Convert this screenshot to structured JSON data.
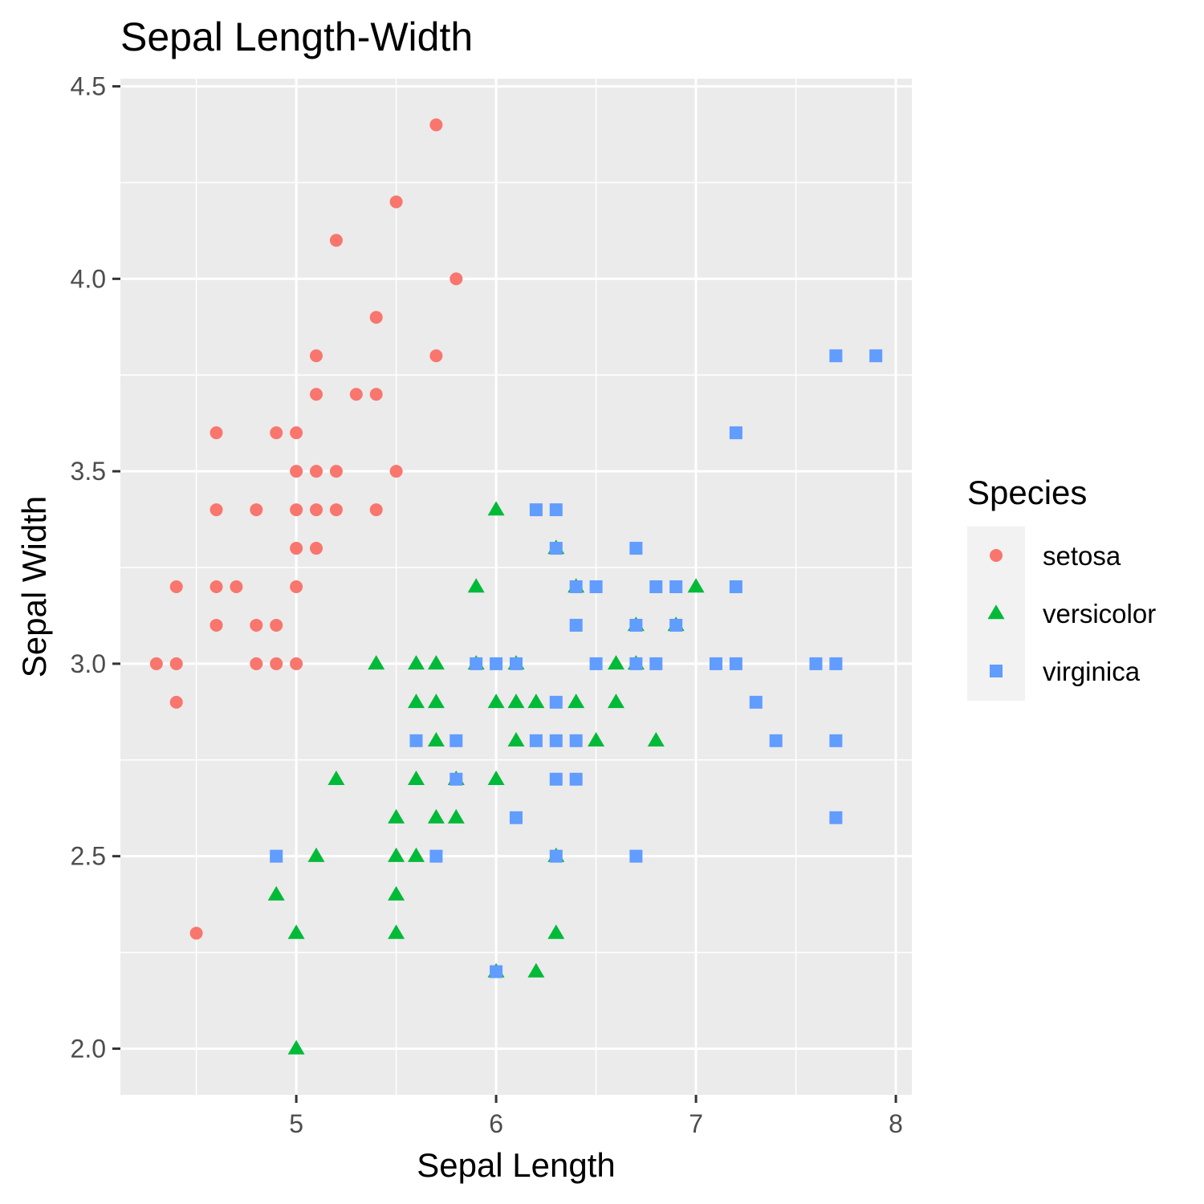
{
  "chart_data": {
    "type": "scatter",
    "title": "Sepal Length-Width",
    "xlabel": "Sepal Length",
    "ylabel": "Sepal Width",
    "xlim": [
      4.12,
      8.08
    ],
    "ylim": [
      1.88,
      4.52
    ],
    "x_ticks": [
      "5",
      "6",
      "7",
      "8"
    ],
    "y_ticks": [
      "2.0",
      "2.5",
      "3.0",
      "3.5",
      "4.0",
      "4.5"
    ],
    "grid": true,
    "legend": {
      "title": "Species",
      "position": "right"
    },
    "series": [
      {
        "name": "setosa",
        "shape": "circle",
        "color": "#F8766D",
        "points": [
          [
            4.3,
            3.0
          ],
          [
            4.4,
            3.2
          ],
          [
            4.4,
            3.0
          ],
          [
            4.4,
            2.9
          ],
          [
            4.5,
            2.3
          ],
          [
            4.6,
            3.6
          ],
          [
            4.6,
            3.4
          ],
          [
            4.6,
            3.2
          ],
          [
            4.6,
            3.1
          ],
          [
            4.7,
            3.2
          ],
          [
            4.8,
            3.4
          ],
          [
            4.8,
            3.1
          ],
          [
            4.8,
            3.0
          ],
          [
            4.9,
            3.6
          ],
          [
            4.9,
            3.1
          ],
          [
            4.9,
            3.0
          ],
          [
            5.0,
            3.6
          ],
          [
            5.0,
            3.5
          ],
          [
            5.0,
            3.4
          ],
          [
            5.0,
            3.3
          ],
          [
            5.0,
            3.2
          ],
          [
            5.0,
            3.0
          ],
          [
            5.1,
            3.8
          ],
          [
            5.1,
            3.7
          ],
          [
            5.1,
            3.5
          ],
          [
            5.1,
            3.4
          ],
          [
            5.1,
            3.3
          ],
          [
            5.2,
            4.1
          ],
          [
            5.2,
            3.5
          ],
          [
            5.2,
            3.4
          ],
          [
            5.3,
            3.7
          ],
          [
            5.4,
            3.9
          ],
          [
            5.4,
            3.7
          ],
          [
            5.4,
            3.4
          ],
          [
            5.5,
            4.2
          ],
          [
            5.5,
            3.5
          ],
          [
            5.7,
            4.4
          ],
          [
            5.7,
            3.8
          ],
          [
            5.8,
            4.0
          ]
        ]
      },
      {
        "name": "versicolor",
        "shape": "triangle",
        "color": "#00BA38",
        "points": [
          [
            4.9,
            2.4
          ],
          [
            5.0,
            2.3
          ],
          [
            5.0,
            2.0
          ],
          [
            5.1,
            2.5
          ],
          [
            5.2,
            2.7
          ],
          [
            5.4,
            3.0
          ],
          [
            5.5,
            2.6
          ],
          [
            5.5,
            2.5
          ],
          [
            5.5,
            2.4
          ],
          [
            5.5,
            2.3
          ],
          [
            5.6,
            3.0
          ],
          [
            5.6,
            2.9
          ],
          [
            5.6,
            2.7
          ],
          [
            5.6,
            2.5
          ],
          [
            5.7,
            3.0
          ],
          [
            5.7,
            2.9
          ],
          [
            5.7,
            2.8
          ],
          [
            5.7,
            2.6
          ],
          [
            5.8,
            2.7
          ],
          [
            5.8,
            2.6
          ],
          [
            5.9,
            3.2
          ],
          [
            5.9,
            3.0
          ],
          [
            6.0,
            3.4
          ],
          [
            6.0,
            2.9
          ],
          [
            6.0,
            2.7
          ],
          [
            6.0,
            2.2
          ],
          [
            6.1,
            3.0
          ],
          [
            6.1,
            2.9
          ],
          [
            6.1,
            2.8
          ],
          [
            6.2,
            2.9
          ],
          [
            6.2,
            2.2
          ],
          [
            6.3,
            3.3
          ],
          [
            6.3,
            2.5
          ],
          [
            6.3,
            2.3
          ],
          [
            6.4,
            3.2
          ],
          [
            6.4,
            2.9
          ],
          [
            6.5,
            2.8
          ],
          [
            6.6,
            3.0
          ],
          [
            6.6,
            2.9
          ],
          [
            6.7,
            3.1
          ],
          [
            6.7,
            3.0
          ],
          [
            6.8,
            2.8
          ],
          [
            6.9,
            3.1
          ],
          [
            7.0,
            3.2
          ]
        ]
      },
      {
        "name": "virginica",
        "shape": "square",
        "color": "#619CFF",
        "points": [
          [
            4.9,
            2.5
          ],
          [
            5.6,
            2.8
          ],
          [
            5.7,
            2.5
          ],
          [
            5.8,
            2.8
          ],
          [
            5.8,
            2.7
          ],
          [
            5.9,
            3.0
          ],
          [
            6.0,
            3.0
          ],
          [
            6.0,
            2.2
          ],
          [
            6.1,
            3.0
          ],
          [
            6.1,
            2.6
          ],
          [
            6.2,
            3.4
          ],
          [
            6.2,
            2.8
          ],
          [
            6.3,
            3.4
          ],
          [
            6.3,
            3.3
          ],
          [
            6.3,
            2.9
          ],
          [
            6.3,
            2.8
          ],
          [
            6.3,
            2.7
          ],
          [
            6.3,
            2.5
          ],
          [
            6.4,
            3.2
          ],
          [
            6.4,
            3.1
          ],
          [
            6.4,
            2.8
          ],
          [
            6.4,
            2.7
          ],
          [
            6.5,
            3.2
          ],
          [
            6.5,
            3.0
          ],
          [
            6.7,
            3.3
          ],
          [
            6.7,
            3.1
          ],
          [
            6.7,
            3.0
          ],
          [
            6.7,
            2.5
          ],
          [
            6.8,
            3.2
          ],
          [
            6.8,
            3.0
          ],
          [
            6.9,
            3.2
          ],
          [
            6.9,
            3.1
          ],
          [
            7.1,
            3.0
          ],
          [
            7.2,
            3.6
          ],
          [
            7.2,
            3.2
          ],
          [
            7.2,
            3.0
          ],
          [
            7.3,
            2.9
          ],
          [
            7.4,
            2.8
          ],
          [
            7.6,
            3.0
          ],
          [
            7.7,
            3.8
          ],
          [
            7.7,
            3.0
          ],
          [
            7.7,
            2.8
          ],
          [
            7.7,
            2.6
          ],
          [
            7.9,
            3.8
          ]
        ]
      }
    ]
  }
}
